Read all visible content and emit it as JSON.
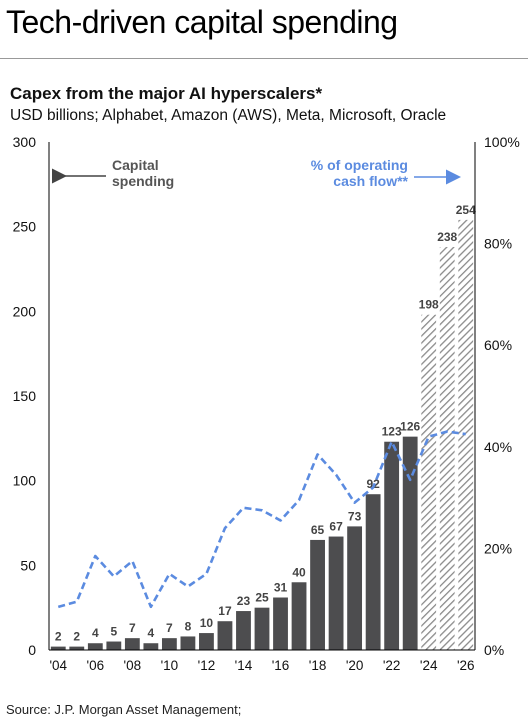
{
  "headline": "Tech-driven capital spending",
  "source": "Source: J.P. Morgan Asset Management;",
  "colors": {
    "bar": "#4d4d4f",
    "forecast_hatch": "#8a8a8a",
    "line": "#5b8be0",
    "axis": "#000000"
  },
  "chart_data": {
    "type": "bar",
    "title": "Capex from the major AI hyperscalers*",
    "subtitle": "USD billions; Alphabet, Amazon (AWS), Meta, Microsoft, Oracle",
    "x": [
      2004,
      2005,
      2006,
      2007,
      2008,
      2009,
      2010,
      2011,
      2012,
      2013,
      2014,
      2015,
      2016,
      2017,
      2018,
      2019,
      2020,
      2021,
      2022,
      2023,
      2024,
      2025,
      2026
    ],
    "x_tick_labels": [
      "'04",
      "'06",
      "'08",
      "'10",
      "'12",
      "'14",
      "'16",
      "'18",
      "'20",
      "'22",
      "'24",
      "'26"
    ],
    "series": [
      {
        "name": "Capital spending",
        "axis": "left",
        "style": "bar",
        "values": [
          2,
          2,
          4,
          5,
          7,
          4,
          7,
          8,
          10,
          17,
          23,
          25,
          31,
          40,
          65,
          67,
          73,
          92,
          123,
          126,
          198,
          238,
          254
        ],
        "labels": [
          "2",
          "2",
          "4",
          "5",
          "7",
          "4",
          "7",
          "8",
          "10",
          "17",
          "23",
          "25",
          "31",
          "40",
          "65",
          "67",
          "73",
          "92",
          "123",
          "126",
          "198",
          "238",
          "254"
        ],
        "forecast_from": 2024
      },
      {
        "name": "% of operating cash flow**",
        "axis": "right",
        "style": "dashed-line",
        "values": [
          8.5,
          9.5,
          18.5,
          14.5,
          17.5,
          8.5,
          15,
          12.5,
          15,
          24,
          28,
          27.5,
          25.5,
          29.5,
          38.5,
          34.5,
          29,
          32,
          41,
          33.5,
          42,
          43,
          42.5
        ]
      }
    ],
    "ylim_left": [
      0,
      300
    ],
    "yticks_left": [
      "0",
      "50",
      "100",
      "150",
      "200",
      "250",
      "300"
    ],
    "ylim_right": [
      0,
      100
    ],
    "yticks_right": [
      "0%",
      "20%",
      "40%",
      "60%",
      "80%",
      "100%"
    ],
    "annotations": {
      "left": [
        "Capital",
        "spending"
      ],
      "right": [
        "% of operating",
        "cash flow**"
      ]
    },
    "grid": false
  }
}
